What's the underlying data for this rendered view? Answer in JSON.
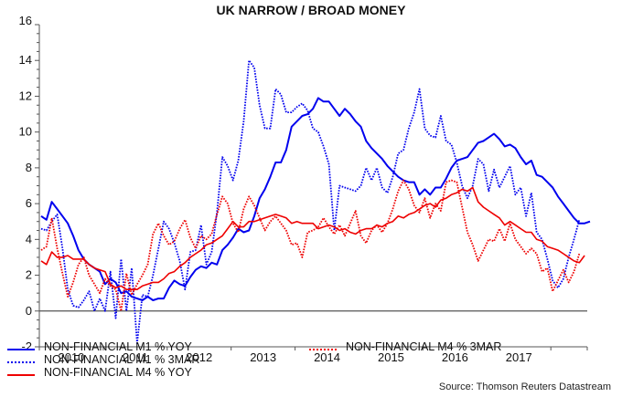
{
  "title": "UK NARROW / BROAD MONEY",
  "source": "Source: Thomson Reuters Datastream",
  "colors": {
    "blue": "#0000ee",
    "red": "#ee0000",
    "axis": "#555555",
    "zero": "#555555"
  },
  "legend": {
    "items": [
      {
        "label": "NON-FINANCIAL M1 % YOY",
        "color": "#0000ee",
        "style": "solid"
      },
      {
        "label": "NON-FINANCIAL M1 % 3MAR",
        "color": "#0000ee",
        "style": "dotted"
      },
      {
        "label": "NON-FINANCIAL M4 % YOY",
        "color": "#ee0000",
        "style": "solid"
      },
      {
        "label": "NON-FINANCIAL M4 % 3MAR",
        "color": "#ee0000",
        "style": "dotted"
      }
    ]
  },
  "chart_data": {
    "type": "line",
    "title": "UK NARROW / BROAD MONEY",
    "xlabel": "",
    "ylabel": "",
    "ylim": [
      -2,
      16
    ],
    "yticks": [
      -2,
      0,
      2,
      4,
      6,
      8,
      10,
      12,
      14,
      16
    ],
    "xtick_labels": [
      "2010",
      "2011",
      "2012",
      "2013",
      "2014",
      "2015",
      "2016",
      "2017"
    ],
    "grid": false,
    "zero_line": true,
    "legend_position": "bottom",
    "x_start": "2010-01",
    "x_step": "month",
    "series": [
      {
        "name": "NON-FINANCIAL M1 % YOY",
        "style": "solid",
        "color": "#0000ee",
        "values": [
          5.3,
          5.1,
          6.1,
          5.7,
          5.3,
          4.9,
          4.2,
          3.4,
          2.9,
          2.6,
          2.4,
          2.2,
          1.5,
          1.8,
          1.6,
          1.0,
          1.1,
          0.8,
          0.7,
          0.6,
          0.8,
          0.6,
          0.7,
          0.7,
          1.3,
          1.7,
          1.5,
          1.4,
          1.9,
          2.3,
          2.5,
          2.4,
          2.7,
          2.6,
          3.4,
          3.7,
          4.1,
          4.6,
          4.4,
          4.5,
          5.3,
          6.3,
          6.8,
          7.5,
          8.3,
          8.3,
          9.0,
          10.3,
          10.6,
          10.9,
          11.0,
          11.3,
          11.9,
          11.7,
          11.7,
          11.3,
          10.9,
          11.3,
          11.0,
          10.6,
          10.3,
          9.5,
          9.1,
          8.8,
          8.5,
          8.1,
          7.8,
          7.5,
          7.3,
          7.2,
          7.2,
          6.5,
          6.8,
          6.5,
          6.9,
          6.9,
          7.4,
          8.0,
          8.4,
          8.5,
          8.6,
          9.0,
          9.4,
          9.5,
          9.7,
          9.9,
          9.6,
          9.2,
          9.3,
          9.1,
          8.6,
          8.2,
          8.4,
          7.6,
          7.5,
          7.2,
          6.9,
          6.4,
          6.0,
          5.6,
          5.2,
          4.9,
          4.9,
          5.0
        ],
        "approx": true
      },
      {
        "name": "NON-FINANCIAL M1 % 3MAR",
        "style": "dotted",
        "color": "#0000ee",
        "values": [
          4.6,
          4.5,
          5.0,
          5.4,
          3.5,
          1.2,
          0.3,
          0.2,
          0.6,
          1.1,
          0.0,
          0.7,
          0.0,
          2.2,
          -0.4,
          2.9,
          0.0,
          2.4,
          -1.8,
          0.9,
          0.8,
          2.0,
          3.5,
          5.0,
          4.6,
          3.8,
          2.8,
          1.2,
          3.3,
          3.4,
          4.8,
          2.6,
          3.3,
          5.5,
          8.6,
          8.1,
          7.3,
          8.4,
          10.6,
          14.0,
          13.6,
          11.5,
          10.2,
          10.2,
          12.4,
          12.1,
          11.1,
          11.1,
          11.4,
          11.6,
          11.2,
          10.2,
          10.0,
          9.2,
          8.2,
          4.5,
          7.0,
          6.9,
          6.8,
          6.7,
          7.0,
          8.0,
          7.3,
          8.0,
          6.9,
          6.6,
          7.5,
          8.8,
          9.0,
          10.2,
          11.1,
          12.4,
          10.2,
          9.8,
          9.7,
          10.9,
          9.5,
          9.3,
          8.3,
          7.0,
          6.3,
          7.0,
          8.5,
          8.2,
          6.7,
          7.9,
          6.9,
          7.5,
          8.1,
          6.5,
          6.9,
          5.3,
          6.6,
          4.4,
          4.0,
          2.9,
          1.7,
          1.3,
          1.8,
          3.0,
          4.0,
          5.1
        ],
        "approx": true
      },
      {
        "name": "NON-FINANCIAL M4 % YOY",
        "style": "solid",
        "color": "#ee0000",
        "values": [
          2.8,
          2.6,
          3.3,
          3.0,
          3.0,
          3.1,
          2.9,
          2.9,
          2.9,
          2.6,
          2.4,
          2.3,
          2.2,
          1.5,
          1.3,
          1.4,
          1.2,
          1.2,
          1.2,
          1.4,
          1.5,
          1.6,
          1.6,
          1.8,
          2.1,
          2.2,
          2.5,
          2.7,
          3.0,
          3.2,
          3.4,
          3.7,
          3.8,
          4.0,
          4.2,
          4.6,
          5.0,
          4.7,
          4.7,
          5.0,
          5.0,
          5.1,
          5.2,
          5.3,
          5.4,
          5.3,
          5.2,
          4.9,
          5.0,
          4.9,
          4.9,
          4.9,
          4.6,
          4.7,
          4.8,
          4.7,
          4.5,
          4.6,
          4.4,
          4.3,
          4.5,
          4.6,
          4.6,
          4.8,
          4.7,
          4.9,
          5.0,
          5.3,
          5.2,
          5.4,
          5.5,
          5.7,
          5.9,
          6.0,
          5.8,
          6.2,
          6.3,
          6.5,
          6.6,
          6.8,
          6.7,
          6.9,
          6.1,
          5.8,
          5.6,
          5.4,
          5.2,
          4.8,
          5.0,
          4.8,
          4.6,
          4.4,
          4.4,
          4.0,
          3.9,
          3.6,
          3.5,
          3.4,
          3.2,
          3.0,
          2.8,
          2.7,
          3.1
        ],
        "approx": true
      },
      {
        "name": "NON-FINANCIAL M4 % 3MAR",
        "style": "dotted",
        "color": "#ee0000",
        "values": [
          3.4,
          3.6,
          5.2,
          3.5,
          2.1,
          0.8,
          1.6,
          2.6,
          3.0,
          2.0,
          1.5,
          1.0,
          1.8,
          1.4,
          1.2,
          0.0,
          2.1,
          0.9,
          1.5,
          2.0,
          2.6,
          4.3,
          4.9,
          4.2,
          3.7,
          3.9,
          4.6,
          5.1,
          4.1,
          3.5,
          4.2,
          4.0,
          4.3,
          5.4,
          6.4,
          6.0,
          4.9,
          4.4,
          5.7,
          6.4,
          5.9,
          5.2,
          4.5,
          5.0,
          5.3,
          4.9,
          4.5,
          3.7,
          3.8,
          3.0,
          4.4,
          4.5,
          4.7,
          5.2,
          4.7,
          4.3,
          4.8,
          4.2,
          4.9,
          5.6,
          4.2,
          3.8,
          4.5,
          4.8,
          4.4,
          4.9,
          5.7,
          6.7,
          7.3,
          6.8,
          5.9,
          5.5,
          6.3,
          5.2,
          6.0,
          5.6,
          7.2,
          7.3,
          7.2,
          5.8,
          4.4,
          3.7,
          2.8,
          3.4,
          4.0,
          3.9,
          4.6,
          3.9,
          4.9,
          4.0,
          3.6,
          3.2,
          3.5,
          3.2,
          2.2,
          2.4,
          1.1,
          1.7,
          2.3,
          1.6,
          2.2,
          3.2
        ],
        "approx": true
      }
    ]
  }
}
